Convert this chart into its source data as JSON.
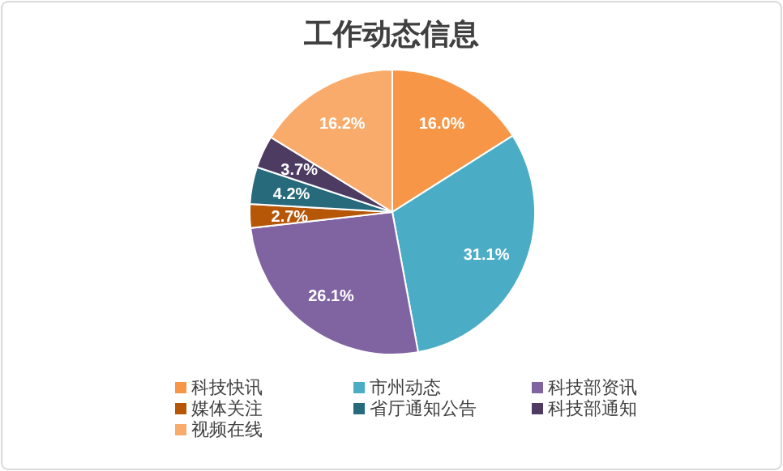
{
  "chart_data": {
    "type": "pie",
    "title": "工作动态信息",
    "categories": [
      "科技快讯",
      "市州动态",
      "科技部资讯",
      "媒体关注",
      "省厅通知公告",
      "科技部通知",
      "视频在线"
    ],
    "values": [
      16.0,
      31.1,
      26.1,
      2.7,
      4.2,
      3.7,
      16.2
    ],
    "value_labels": [
      "16.0%",
      "31.1%",
      "26.1%",
      "2.7%",
      "4.2%",
      "3.7%",
      "16.2%"
    ],
    "colors": [
      "#f79646",
      "#4bacc6",
      "#8064a2",
      "#b65708",
      "#276a7c",
      "#4d3b62",
      "#f9ab6b"
    ],
    "legend": "bottom"
  }
}
